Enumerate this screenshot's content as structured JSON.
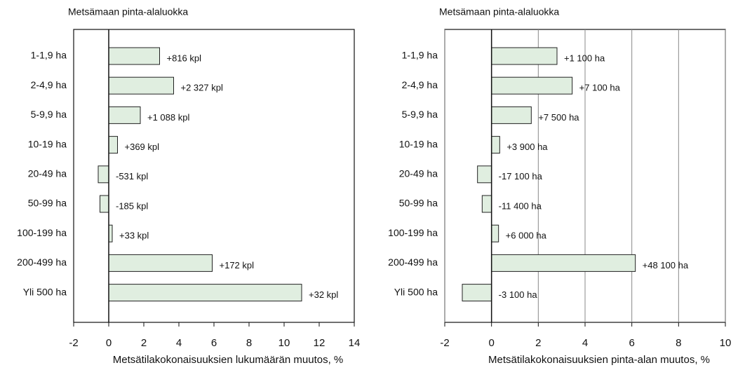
{
  "chart_data": [
    {
      "type": "barh",
      "title": "Metsämaan pinta-alaluokka",
      "xlabel": "Metsätilakokonaisuuksien lukumäärän muutos, %",
      "categories": [
        "1-1,9 ha",
        "2-4,9 ha",
        "5-9,9 ha",
        "10-19 ha",
        "20-49 ha",
        "50-99 ha",
        "100-199 ha",
        "200-499 ha",
        "Yli 500 ha"
      ],
      "values": [
        2.9,
        3.7,
        1.8,
        0.5,
        -0.6,
        -0.5,
        0.2,
        5.9,
        11.0
      ],
      "annotations": [
        "+816 kpl",
        "+2 327 kpl",
        "+1 088 kpl",
        "+369 kpl",
        "-531 kpl",
        "-185 kpl",
        "+33 kpl",
        "+172 kpl",
        "+32 kpl"
      ],
      "color": "#e0eee0",
      "xlim": [
        -2,
        14
      ],
      "xticks": [
        -2,
        0,
        2,
        4,
        6,
        8,
        10,
        12,
        14
      ],
      "grid": false
    },
    {
      "type": "barh",
      "title": "Metsämaan pinta-alaluokka",
      "xlabel": "Metsätilakokonaisuuksien pinta-alan muutos, %",
      "categories": [
        "1-1,9 ha",
        "2-4,9 ha",
        "5-9,9 ha",
        "10-19 ha",
        "20-49 ha",
        "50-99 ha",
        "100-199 ha",
        "200-499 ha",
        "Yli 500 ha"
      ],
      "values": [
        2.8,
        3.45,
        1.7,
        0.35,
        -0.6,
        -0.4,
        0.3,
        6.15,
        -1.25
      ],
      "annotations": [
        "+1 100 ha",
        "+7 100 ha",
        "+7 500 ha",
        "+3 900 ha",
        "-17 100 ha",
        "-11 400 ha",
        "+6 000 ha",
        "+48 100 ha",
        "-3 100 ha"
      ],
      "color": "#e0eee0",
      "xlim": [
        -2,
        10
      ],
      "xticks": [
        -2,
        0,
        2,
        4,
        6,
        8,
        10
      ],
      "grid": true
    }
  ]
}
